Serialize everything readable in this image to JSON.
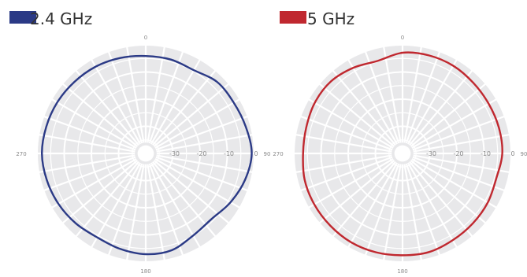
{
  "chart_data": [
    {
      "type": "polar",
      "legend": {
        "label": "2.4 GHz",
        "color": "#2b3a86"
      },
      "angle_labels": [
        "0",
        "90",
        "180",
        "270"
      ],
      "ring_labels": [
        "-30",
        "-20",
        "-10",
        "0"
      ],
      "r_range": [
        -40,
        0
      ],
      "ring_values": [
        -30,
        -20,
        -10,
        0
      ],
      "angular_divisions": 36,
      "series": [
        {
          "angle_deg": [
            0,
            15,
            30,
            45,
            60,
            75,
            90,
            105,
            120,
            135,
            150,
            165,
            180,
            195,
            210,
            225,
            240,
            255,
            270,
            285,
            300,
            315,
            330,
            345
          ],
          "value_dbi": [
            -4.1,
            -4.2,
            -4.6,
            -2.8,
            -2.6,
            -1.9,
            -1.0,
            -2.2,
            -4.0,
            -5.8,
            -5.1,
            -3.1,
            -2.9,
            -3.6,
            -4.3,
            -3.6,
            -2.9,
            -2.3,
            -1.8,
            -2.1,
            -2.4,
            -2.8,
            -3.1,
            -3.6
          ]
        }
      ]
    },
    {
      "type": "polar",
      "legend": {
        "label": "5 GHz",
        "color": "#c0282f"
      },
      "angle_labels": [
        "0",
        "90",
        "180",
        "270"
      ],
      "ring_labels": [
        "-30",
        "-20",
        "-10",
        "0"
      ],
      "r_range": [
        -40,
        0
      ],
      "ring_values": [
        -30,
        -20,
        -10,
        0
      ],
      "angular_divisions": 36,
      "series": [
        {
          "angle_deg": [
            0,
            15,
            30,
            45,
            60,
            75,
            90,
            105,
            120,
            135,
            150,
            165,
            180,
            195,
            210,
            225,
            240,
            255,
            270,
            285,
            300,
            315,
            330,
            345
          ],
          "value_dbi": [
            -2.9,
            -2.6,
            -2.7,
            -3.2,
            -3.4,
            -3.3,
            -3.3,
            -4.3,
            -3.8,
            -3.5,
            -3.1,
            -2.4,
            -2.5,
            -2.3,
            -2.2,
            -2.4,
            -2.5,
            -2.7,
            -3.4,
            -3.3,
            -2.7,
            -2.6,
            -3.6,
            -4.7
          ]
        }
      ]
    }
  ]
}
